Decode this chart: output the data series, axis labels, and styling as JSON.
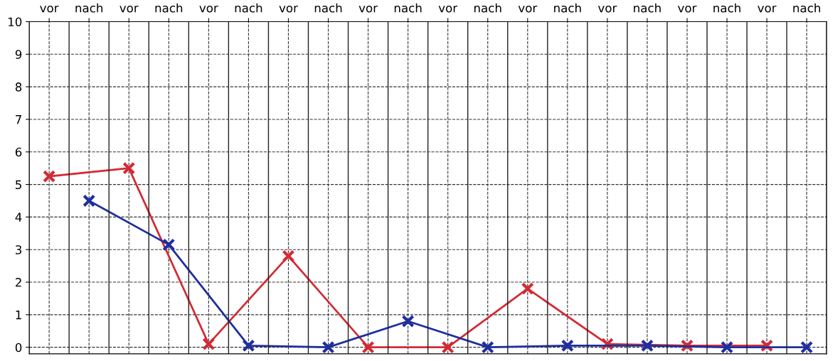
{
  "chart_data": {
    "type": "line",
    "categories": [
      "vor",
      "nach",
      "vor",
      "nach",
      "vor",
      "nach",
      "vor",
      "nach",
      "vor",
      "nach",
      "vor",
      "nach",
      "vor",
      "nach",
      "vor",
      "nach",
      "vor",
      "nach",
      "vor",
      "nach"
    ],
    "series": [
      {
        "color": "#d42a34",
        "values": [
          5.25,
          null,
          5.5,
          null,
          0.1,
          null,
          2.8,
          null,
          0,
          null,
          0,
          null,
          1.8,
          null,
          0.1,
          null,
          0.05,
          null,
          0.05,
          null
        ]
      },
      {
        "color": "#1f2f9e",
        "values": [
          null,
          4.5,
          null,
          3.15,
          null,
          0.05,
          null,
          0,
          null,
          0.8,
          null,
          0,
          null,
          0.05,
          null,
          0.05,
          null,
          0,
          null,
          0
        ]
      }
    ],
    "ylim": [
      -0.2,
      10
    ],
    "yticks": [
      0,
      1,
      2,
      3,
      4,
      5,
      6,
      7,
      8,
      9,
      10
    ],
    "grid": true,
    "marker": "cross",
    "line_style": "solid",
    "legend": false
  }
}
